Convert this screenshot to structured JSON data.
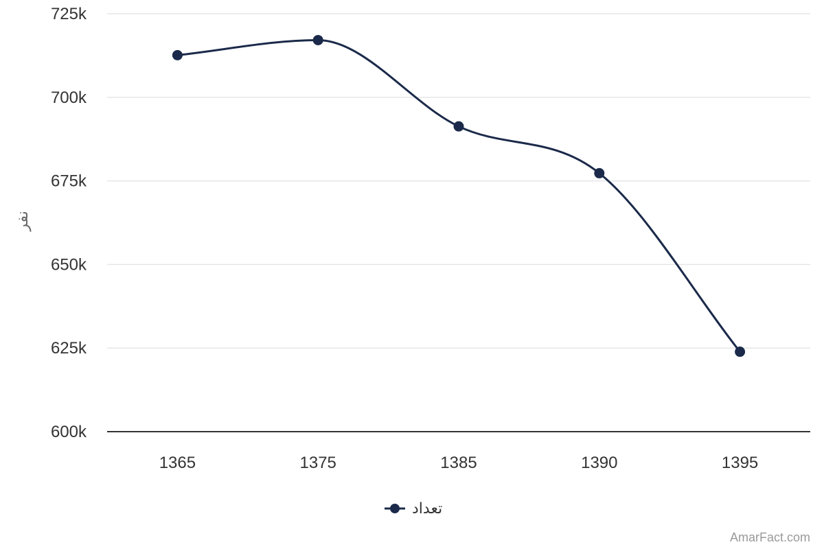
{
  "chart_data": {
    "type": "line",
    "title": "",
    "ylabel": "نفر",
    "xlabel": "",
    "categories": [
      "1365",
      "1375",
      "1385",
      "1390",
      "1395"
    ],
    "series": [
      {
        "name": "تعداد",
        "values": [
          712600,
          717100,
          691300,
          677300,
          623900
        ]
      }
    ],
    "ylim": [
      600000,
      725000
    ],
    "yticks": [
      600000,
      625000,
      650000,
      675000,
      700000,
      725000
    ],
    "ytick_labels": [
      "600k",
      "625k",
      "650k",
      "675k",
      "700k",
      "725k"
    ],
    "grid": true,
    "legend_position": "bottom-center",
    "colors": {
      "series": "#1b2a4a",
      "grid": "#e6e6e6",
      "axis": "#333333"
    }
  },
  "credit": "AmarFact.com"
}
